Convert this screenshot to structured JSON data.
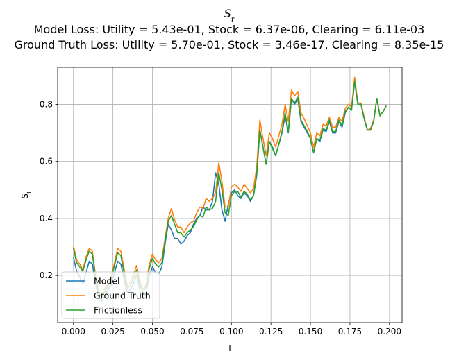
{
  "chart_data": {
    "type": "line",
    "title": "S_t",
    "subtitle_lines": [
      "Model Loss: Utility = 5.43e-01, Stock = 6.37e-06, Clearing = 6.11e-03",
      "Ground Truth Loss: Utility = 5.70e-01, Stock = 3.46e-17, Clearing = 8.35e-15"
    ],
    "xlabel": "T",
    "ylabel": "S_t",
    "xlim": [
      -0.01,
      0.208
    ],
    "ylim": [
      0.035,
      0.93
    ],
    "xticks": [
      0.0,
      0.025,
      0.05,
      0.075,
      0.1,
      0.125,
      0.15,
      0.175,
      0.2
    ],
    "xtick_labels": [
      "0.000",
      "0.025",
      "0.050",
      "0.075",
      "0.100",
      "0.125",
      "0.150",
      "0.175",
      "0.200"
    ],
    "yticks": [
      0.2,
      0.4,
      0.6,
      0.8
    ],
    "ytick_labels": [
      "0.2",
      "0.4",
      "0.6",
      "0.8"
    ],
    "grid": true,
    "legend_position": "lower-left",
    "x": [
      0.0,
      0.002,
      0.004,
      0.006,
      0.008,
      0.01,
      0.012,
      0.014,
      0.016,
      0.018,
      0.02,
      0.022,
      0.024,
      0.026,
      0.028,
      0.03,
      0.032,
      0.034,
      0.036,
      0.038,
      0.04,
      0.042,
      0.044,
      0.046,
      0.048,
      0.05,
      0.052,
      0.054,
      0.056,
      0.058,
      0.06,
      0.062,
      0.064,
      0.066,
      0.068,
      0.07,
      0.072,
      0.074,
      0.076,
      0.078,
      0.08,
      0.082,
      0.084,
      0.086,
      0.088,
      0.09,
      0.092,
      0.094,
      0.096,
      0.098,
      0.1,
      0.102,
      0.104,
      0.106,
      0.108,
      0.11,
      0.112,
      0.114,
      0.116,
      0.118,
      0.12,
      0.122,
      0.124,
      0.126,
      0.128,
      0.13,
      0.132,
      0.134,
      0.136,
      0.138,
      0.14,
      0.142,
      0.144,
      0.146,
      0.148,
      0.15,
      0.152,
      0.154,
      0.156,
      0.158,
      0.16,
      0.162,
      0.164,
      0.166,
      0.168,
      0.17,
      0.172,
      0.174,
      0.176,
      0.178,
      0.18,
      0.182,
      0.184,
      0.186,
      0.188,
      0.19,
      0.192,
      0.194,
      0.196,
      0.198
    ],
    "series": [
      {
        "name": "Model",
        "color": "#1f77b4",
        "values": [
          0.265,
          0.215,
          0.195,
          0.17,
          0.21,
          0.25,
          0.24,
          0.17,
          0.125,
          0.11,
          0.13,
          0.15,
          0.17,
          0.21,
          0.25,
          0.24,
          0.19,
          0.14,
          0.15,
          0.17,
          0.2,
          0.15,
          0.12,
          0.14,
          0.2,
          0.23,
          0.21,
          0.205,
          0.23,
          0.31,
          0.38,
          0.36,
          0.33,
          0.33,
          0.31,
          0.32,
          0.34,
          0.35,
          0.38,
          0.4,
          0.41,
          0.44,
          0.43,
          0.43,
          0.46,
          0.56,
          0.52,
          0.43,
          0.39,
          0.45,
          0.49,
          0.5,
          0.48,
          0.47,
          0.49,
          0.48,
          0.46,
          0.48,
          0.55,
          0.71,
          0.65,
          0.59,
          0.67,
          0.65,
          0.62,
          0.66,
          0.7,
          0.76,
          0.7,
          0.82,
          0.8,
          0.82,
          0.74,
          0.72,
          0.7,
          0.68,
          0.63,
          0.68,
          0.67,
          0.71,
          0.705,
          0.74,
          0.7,
          0.7,
          0.74,
          0.72,
          0.77,
          0.79,
          0.78,
          0.88,
          0.8,
          0.8,
          0.75,
          0.71,
          0.71,
          0.74,
          0.82,
          0.76,
          0.775,
          0.795
        ]
      },
      {
        "name": "Ground Truth",
        "color": "#ff7f0e",
        "values": [
          0.305,
          0.255,
          0.24,
          0.22,
          0.265,
          0.295,
          0.285,
          0.2,
          0.145,
          0.135,
          0.155,
          0.175,
          0.2,
          0.245,
          0.295,
          0.285,
          0.225,
          0.165,
          0.175,
          0.205,
          0.235,
          0.185,
          0.15,
          0.17,
          0.24,
          0.275,
          0.255,
          0.245,
          0.26,
          0.33,
          0.4,
          0.435,
          0.395,
          0.37,
          0.37,
          0.35,
          0.37,
          0.385,
          0.39,
          0.42,
          0.44,
          0.435,
          0.47,
          0.46,
          0.47,
          0.49,
          0.595,
          0.53,
          0.44,
          0.44,
          0.51,
          0.52,
          0.51,
          0.495,
          0.52,
          0.505,
          0.49,
          0.505,
          0.58,
          0.745,
          0.68,
          0.62,
          0.7,
          0.68,
          0.65,
          0.69,
          0.73,
          0.8,
          0.74,
          0.85,
          0.83,
          0.845,
          0.77,
          0.75,
          0.725,
          0.7,
          0.65,
          0.7,
          0.69,
          0.73,
          0.725,
          0.755,
          0.72,
          0.72,
          0.755,
          0.74,
          0.785,
          0.8,
          0.79,
          0.895,
          0.805,
          0.805,
          0.755,
          0.71,
          0.715,
          0.745,
          0.82,
          0.76,
          0.775,
          0.795
        ]
      },
      {
        "name": "Frictionless",
        "color": "#2ca02c",
        "values": [
          0.295,
          0.245,
          0.23,
          0.215,
          0.255,
          0.285,
          0.275,
          0.19,
          0.135,
          0.125,
          0.145,
          0.165,
          0.19,
          0.235,
          0.28,
          0.27,
          0.21,
          0.155,
          0.165,
          0.19,
          0.22,
          0.17,
          0.14,
          0.16,
          0.225,
          0.26,
          0.24,
          0.23,
          0.245,
          0.32,
          0.39,
          0.41,
          0.38,
          0.35,
          0.35,
          0.335,
          0.35,
          0.36,
          0.37,
          0.395,
          0.41,
          0.405,
          0.44,
          0.43,
          0.435,
          0.46,
          0.56,
          0.5,
          0.42,
          0.41,
          0.48,
          0.495,
          0.495,
          0.475,
          0.495,
          0.485,
          0.465,
          0.48,
          0.555,
          0.71,
          0.65,
          0.59,
          0.67,
          0.645,
          0.62,
          0.66,
          0.705,
          0.77,
          0.705,
          0.82,
          0.805,
          0.825,
          0.745,
          0.725,
          0.705,
          0.68,
          0.63,
          0.68,
          0.675,
          0.715,
          0.71,
          0.745,
          0.705,
          0.705,
          0.745,
          0.725,
          0.775,
          0.79,
          0.78,
          0.88,
          0.8,
          0.8,
          0.75,
          0.71,
          0.71,
          0.74,
          0.82,
          0.76,
          0.775,
          0.795
        ]
      }
    ]
  }
}
